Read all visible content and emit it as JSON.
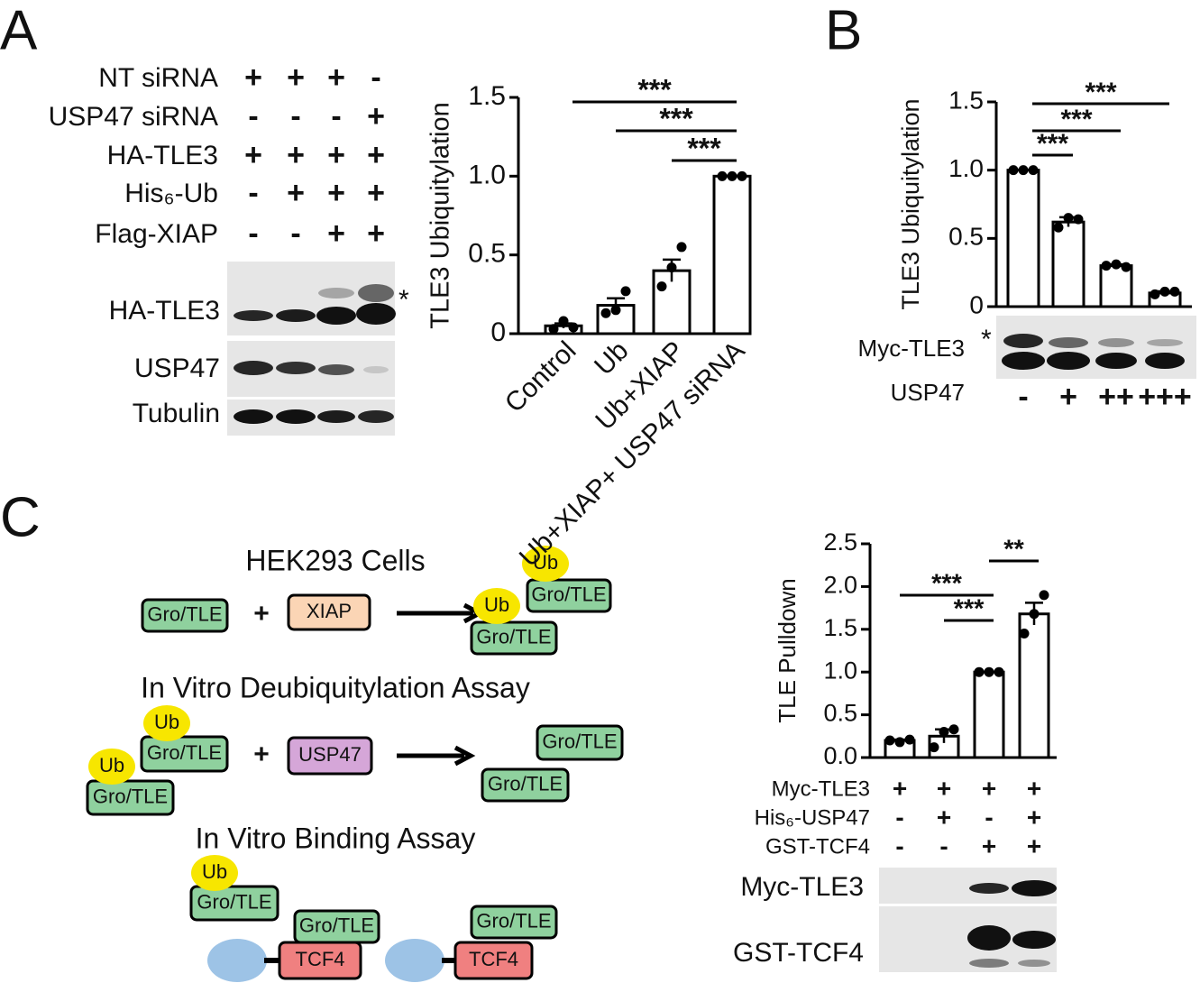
{
  "panel_labels": [
    "A",
    "B",
    "C"
  ],
  "panel_a": {
    "conditions": {
      "rows": [
        {
          "label": "NT siRNA",
          "marks": [
            "+",
            "+",
            "+",
            "-"
          ]
        },
        {
          "label": "USP47 siRNA",
          "marks": [
            "-",
            "-",
            "-",
            "+"
          ]
        },
        {
          "label": "HA-TLE3",
          "marks": [
            "+",
            "+",
            "+",
            "+"
          ]
        },
        {
          "label": "His₆-Ub",
          "marks": [
            "-",
            "+",
            "+",
            "+"
          ]
        },
        {
          "label": "Flag-XIAP",
          "marks": [
            "-",
            "-",
            "+",
            "+"
          ]
        }
      ]
    },
    "blots": [
      {
        "label": "HA-TLE3"
      },
      {
        "label": "USP47"
      },
      {
        "label": "Tubulin"
      }
    ],
    "asterisk": "*"
  },
  "panel_b": {
    "blot": {
      "label": "Myc-TLE3",
      "asterisk": "*"
    },
    "treatment_label": "USP47"
  },
  "panel_c": {
    "conditions": {
      "rows": [
        {
          "label": "Myc-TLE3",
          "marks": [
            "+",
            "+",
            "+",
            "+"
          ]
        },
        {
          "label": "His₆-USP47",
          "marks": [
            "-",
            "+",
            "-",
            "+"
          ]
        },
        {
          "label": "GST-TCF4",
          "marks": [
            "-",
            "-",
            "+",
            "+"
          ]
        }
      ]
    },
    "blots": [
      {
        "label": "Myc-TLE3"
      },
      {
        "label": "GST-TCF4"
      }
    ]
  },
  "diagram": {
    "sections": [
      {
        "title": "HEK293 Cells",
        "labels": [
          "Gro/TLE",
          "+",
          "XIAP",
          "Gro/TLE",
          "Ub",
          "Gro/TLE",
          "Ub"
        ]
      },
      {
        "title": "In Vitro Deubiquitylation Assay",
        "labels": [
          "Gro/TLE",
          "Ub",
          "Gro/TLE",
          "Ub",
          "+",
          "USP47",
          "Gro/TLE",
          "Gro/TLE"
        ]
      },
      {
        "title": "In Vitro Binding Assay",
        "labels": [
          "Gro/TLE",
          "Ub",
          "Gro/TLE",
          "TCF4",
          "Gro/TLE",
          "TCF4"
        ]
      }
    ]
  },
  "chart_data": [
    {
      "type": "bar",
      "y_label": "TLE3 Ubiquitylation",
      "categories": [
        "Control",
        "Ub",
        "Ub+XIAP",
        "Ub+XIAP+ USP47 siRNA"
      ],
      "values": [
        0.05,
        0.18,
        0.4,
        1.0
      ],
      "errors": [
        0.015,
        0.045,
        0.07,
        0.003
      ],
      "points": [
        [
          0.03,
          0.08,
          0.04
        ],
        [
          0.13,
          0.15,
          0.27
        ],
        [
          0.3,
          0.42,
          0.55
        ],
        [
          1.0,
          1.0,
          1.0
        ]
      ],
      "ylim": [
        0,
        1.5
      ],
      "yticks": [
        0,
        0.5,
        {
          "value": 1,
          "label": "1.0"
        },
        1.5
      ],
      "color": "#ffffff",
      "significance": [
        {
          "label": "***",
          "from": 0,
          "to": 3
        },
        {
          "label": "***",
          "from": 1,
          "to": 3
        },
        {
          "label": "***",
          "from": 2,
          "to": 3
        }
      ]
    },
    {
      "type": "bar",
      "y_label": "TLE3 Ubiquitylation",
      "categories": [
        "-",
        "+",
        "++",
        "+++"
      ],
      "values": [
        1.0,
        0.62,
        0.3,
        0.1
      ],
      "errors": [
        0.003,
        0.035,
        0.01,
        0.012
      ],
      "points": [
        [
          1.0,
          1.0,
          1.0
        ],
        [
          0.58,
          0.65,
          0.64
        ],
        [
          0.3,
          0.31,
          0.29
        ],
        [
          0.09,
          0.11,
          0.11
        ]
      ],
      "ylim": [
        0,
        1.5
      ],
      "yticks": [
        0,
        0.5,
        {
          "value": 1,
          "label": "1.0"
        },
        1.5
      ],
      "color": "#ffffff",
      "significance": [
        {
          "label": "***",
          "from": 0,
          "to": 3
        },
        {
          "label": "***",
          "from": 0,
          "to": 2
        },
        {
          "label": "***",
          "from": 0,
          "to": 1
        }
      ]
    },
    {
      "type": "bar",
      "y_label": "TLE Pulldown",
      "values": [
        0.2,
        0.25,
        1.0,
        1.68
      ],
      "errors": [
        0.01,
        0.08,
        0.003,
        0.13
      ],
      "points": [
        [
          0.2,
          0.18,
          0.21
        ],
        [
          0.12,
          0.3,
          0.33
        ],
        [
          1.0,
          1.0,
          1.0
        ],
        [
          1.45,
          1.68,
          1.9
        ]
      ],
      "ylim": [
        0,
        2.5
      ],
      "yticks": [
        {
          "value": 0,
          "label": "0.0"
        },
        0.5,
        {
          "value": 1,
          "label": "1.0"
        },
        1.5,
        {
          "value": 2,
          "label": "2.0"
        },
        2.5
      ],
      "color": "#ffffff",
      "significance": [
        {
          "label": "***",
          "from": 0,
          "to": 2
        },
        {
          "label": "***",
          "from": 1,
          "to": 2
        },
        {
          "label": "**",
          "from": 2,
          "to": 3
        }
      ]
    }
  ]
}
